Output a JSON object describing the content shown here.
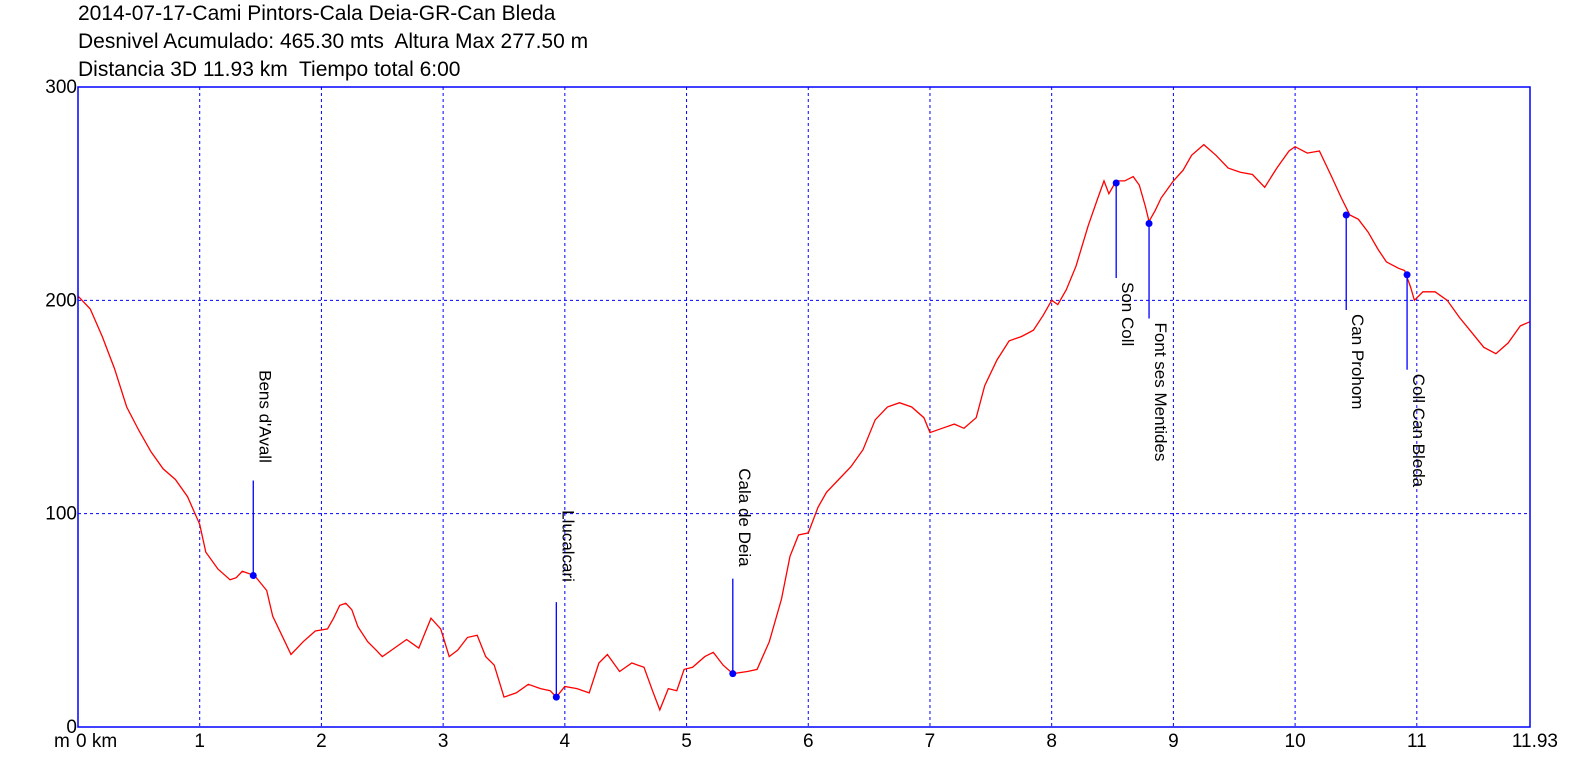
{
  "header": {
    "title": "2014-07-17-Cami Pintors-Cala Deia-GR-Can Bleda",
    "line2": "Desnivel Acumulado: 465.30 mts  Altura Max 277.50 m",
    "line3": "Distancia 3D 11.93 km  Tiempo total 6:00"
  },
  "chart_data": {
    "type": "line",
    "title": "2014-07-17-Cami Pintors-Cala Deia-GR-Can Bleda",
    "xlabel": "km",
    "ylabel": "m",
    "xlim": [
      0,
      11.93
    ],
    "ylim": [
      0,
      300
    ],
    "x_ticks": [
      {
        "value": 0,
        "label": "0 km"
      },
      {
        "value": 1,
        "label": "1"
      },
      {
        "value": 2,
        "label": "2"
      },
      {
        "value": 3,
        "label": "3"
      },
      {
        "value": 4,
        "label": "4"
      },
      {
        "value": 5,
        "label": "5"
      },
      {
        "value": 6,
        "label": "6"
      },
      {
        "value": 7,
        "label": "7"
      },
      {
        "value": 8,
        "label": "8"
      },
      {
        "value": 9,
        "label": "9"
      },
      {
        "value": 10,
        "label": "10"
      },
      {
        "value": 11,
        "label": "11"
      },
      {
        "value": 11.93,
        "label": "11.93"
      }
    ],
    "y_ticks": [
      {
        "value": 0,
        "label": "0"
      },
      {
        "value": 100,
        "label": "100"
      },
      {
        "value": 200,
        "label": "200"
      },
      {
        "value": 300,
        "label": "300"
      }
    ],
    "grid": true,
    "colors": {
      "line": "#ff0000",
      "grid": "#0000ff",
      "frame": "#0000ff",
      "waypoint": "#0000ff"
    },
    "series": [
      {
        "values": [
          [
            0,
            202
          ],
          [
            0.1,
            196
          ],
          [
            0.2,
            183
          ],
          [
            0.3,
            168
          ],
          [
            0.4,
            150
          ],
          [
            0.5,
            139
          ],
          [
            0.6,
            129
          ],
          [
            0.7,
            121
          ],
          [
            0.8,
            116
          ],
          [
            0.9,
            108
          ],
          [
            1.0,
            95
          ],
          [
            1.05,
            82
          ],
          [
            1.15,
            74
          ],
          [
            1.25,
            69
          ],
          [
            1.3,
            70
          ],
          [
            1.35,
            73
          ],
          [
            1.45,
            71
          ],
          [
            1.55,
            64
          ],
          [
            1.6,
            52
          ],
          [
            1.7,
            40
          ],
          [
            1.75,
            34
          ],
          [
            1.85,
            40
          ],
          [
            1.95,
            45
          ],
          [
            2.05,
            46
          ],
          [
            2.1,
            51
          ],
          [
            2.15,
            57
          ],
          [
            2.2,
            58
          ],
          [
            2.25,
            55
          ],
          [
            2.3,
            47
          ],
          [
            2.38,
            40
          ],
          [
            2.45,
            36
          ],
          [
            2.5,
            33
          ],
          [
            2.6,
            37
          ],
          [
            2.7,
            41
          ],
          [
            2.75,
            39
          ],
          [
            2.8,
            37
          ],
          [
            2.9,
            51
          ],
          [
            2.98,
            46
          ],
          [
            3.05,
            33
          ],
          [
            3.12,
            36
          ],
          [
            3.2,
            42
          ],
          [
            3.28,
            43
          ],
          [
            3.35,
            33
          ],
          [
            3.42,
            29
          ],
          [
            3.5,
            14
          ],
          [
            3.6,
            16
          ],
          [
            3.7,
            20
          ],
          [
            3.8,
            18
          ],
          [
            3.88,
            17
          ],
          [
            3.93,
            14
          ],
          [
            4.0,
            19
          ],
          [
            4.1,
            18
          ],
          [
            4.2,
            16
          ],
          [
            4.28,
            30
          ],
          [
            4.35,
            34
          ],
          [
            4.45,
            26
          ],
          [
            4.55,
            30
          ],
          [
            4.65,
            28
          ],
          [
            4.72,
            17
          ],
          [
            4.78,
            8
          ],
          [
            4.85,
            18
          ],
          [
            4.92,
            17
          ],
          [
            4.98,
            27
          ],
          [
            5.05,
            28
          ],
          [
            5.15,
            33
          ],
          [
            5.22,
            35
          ],
          [
            5.3,
            29
          ],
          [
            5.38,
            25
          ],
          [
            5.5,
            26
          ],
          [
            5.58,
            27
          ],
          [
            5.68,
            40
          ],
          [
            5.78,
            60
          ],
          [
            5.85,
            80
          ],
          [
            5.92,
            90
          ],
          [
            6.0,
            91
          ],
          [
            6.08,
            103
          ],
          [
            6.15,
            110
          ],
          [
            6.25,
            116
          ],
          [
            6.35,
            122
          ],
          [
            6.45,
            130
          ],
          [
            6.55,
            144
          ],
          [
            6.65,
            150
          ],
          [
            6.75,
            152
          ],
          [
            6.85,
            150
          ],
          [
            6.95,
            145
          ],
          [
            7.0,
            138
          ],
          [
            7.1,
            140
          ],
          [
            7.2,
            142
          ],
          [
            7.28,
            140
          ],
          [
            7.38,
            145
          ],
          [
            7.45,
            160
          ],
          [
            7.55,
            172
          ],
          [
            7.65,
            181
          ],
          [
            7.75,
            183
          ],
          [
            7.85,
            186
          ],
          [
            7.93,
            193
          ],
          [
            8.0,
            200
          ],
          [
            8.05,
            198
          ],
          [
            8.12,
            205
          ],
          [
            8.2,
            216
          ],
          [
            8.3,
            235
          ],
          [
            8.38,
            248
          ],
          [
            8.43,
            256
          ],
          [
            8.47,
            250
          ],
          [
            8.53,
            256
          ],
          [
            8.6,
            256
          ],
          [
            8.67,
            258
          ],
          [
            8.72,
            254
          ],
          [
            8.77,
            244
          ],
          [
            8.8,
            237
          ],
          [
            8.85,
            242
          ],
          [
            8.9,
            248
          ],
          [
            8.95,
            252
          ],
          [
            9.0,
            256
          ],
          [
            9.08,
            261
          ],
          [
            9.15,
            268
          ],
          [
            9.25,
            273
          ],
          [
            9.35,
            268
          ],
          [
            9.45,
            262
          ],
          [
            9.55,
            260
          ],
          [
            9.65,
            259
          ],
          [
            9.75,
            253
          ],
          [
            9.85,
            262
          ],
          [
            9.95,
            270
          ],
          [
            10.0,
            272
          ],
          [
            10.1,
            269
          ],
          [
            10.2,
            270
          ],
          [
            10.3,
            258
          ],
          [
            10.38,
            248
          ],
          [
            10.45,
            240
          ],
          [
            10.52,
            238
          ],
          [
            10.6,
            232
          ],
          [
            10.68,
            224
          ],
          [
            10.75,
            218
          ],
          [
            10.85,
            215
          ],
          [
            10.9,
            214
          ],
          [
            10.95,
            206
          ],
          [
            10.98,
            200
          ],
          [
            11.05,
            204
          ],
          [
            11.15,
            204
          ],
          [
            11.25,
            200
          ],
          [
            11.35,
            192
          ],
          [
            11.45,
            185
          ],
          [
            11.55,
            178
          ],
          [
            11.65,
            175
          ],
          [
            11.75,
            180
          ],
          [
            11.85,
            188
          ],
          [
            11.93,
            190
          ]
        ]
      }
    ],
    "waypoints": [
      {
        "name": "Bens d'Avall",
        "x": 1.44,
        "y": 71
      },
      {
        "name": "Llucalcari",
        "x": 3.93,
        "y": 14
      },
      {
        "name": "Cala de Deia",
        "x": 5.38,
        "y": 25
      },
      {
        "name": "Son Coll",
        "x": 8.53,
        "y": 255
      },
      {
        "name": "Font ses Mentides",
        "x": 8.8,
        "y": 236
      },
      {
        "name": "Can Prohom",
        "x": 10.42,
        "y": 240
      },
      {
        "name": "Coll Can Bleda",
        "x": 10.92,
        "y": 212
      }
    ]
  }
}
